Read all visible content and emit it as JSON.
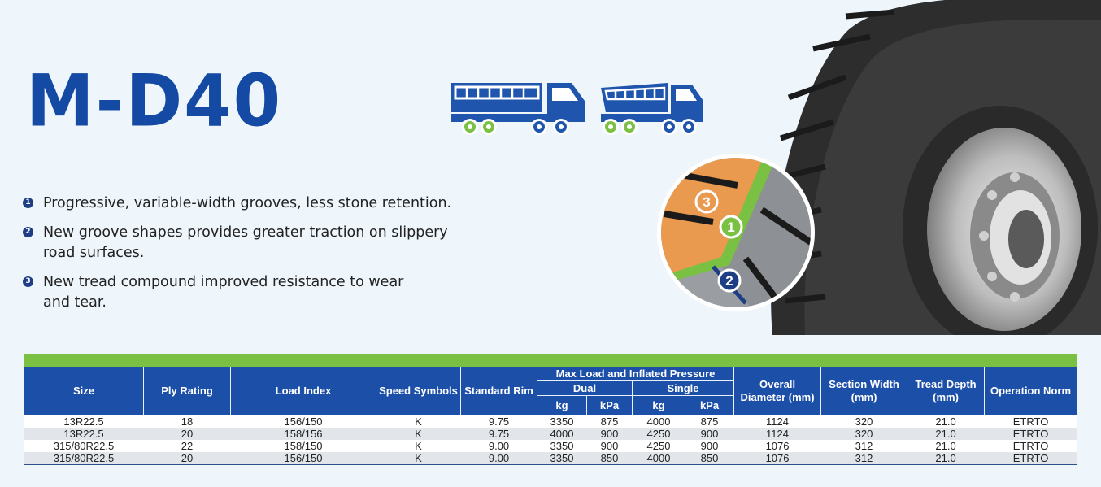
{
  "product": {
    "title": "M-D40"
  },
  "features": [
    {
      "num": "1",
      "text": "Progressive, variable-width grooves, less stone retention."
    },
    {
      "num": "2",
      "text": "New groove shapes provides greater traction on slippery road surfaces."
    },
    {
      "num": "3",
      "text": "New tread compound improved resistance to wear and tear."
    }
  ],
  "callouts": {
    "c1": "1",
    "c2": "2",
    "c3": "3"
  },
  "colors": {
    "brand_blue": "#1449a4",
    "header_blue": "#1c4fa8",
    "accent_green": "#7ac143",
    "bullet_navy": "#1d3d84"
  },
  "icons": [
    "dump-truck-icon",
    "tipper-truck-icon"
  ],
  "table": {
    "headers": {
      "size": "Size",
      "ply_rating": "Ply Rating",
      "load_index": "Load Index",
      "speed_symbols": "Speed Symbols",
      "standard_rim": "Standard Rim",
      "max_load": "Max Load and Inflated Pressure",
      "dual": "Dual",
      "single": "Single",
      "kg": "kg",
      "kpa": "kPa",
      "overall_diameter": "Overall Diameter (mm)",
      "section_width": "Section Width (mm)",
      "tread_depth": "Tread Depth (mm)",
      "operation_norm": "Operation Norm"
    },
    "rows": [
      [
        "13R22.5",
        "18",
        "156/150",
        "K",
        "9.75",
        "3350",
        "875",
        "4000",
        "875",
        "1124",
        "320",
        "21.0",
        "ETRTO"
      ],
      [
        "13R22.5",
        "20",
        "158/156",
        "K",
        "9.75",
        "4000",
        "900",
        "4250",
        "900",
        "1124",
        "320",
        "21.0",
        "ETRTO"
      ],
      [
        "315/80R22.5",
        "22",
        "158/150",
        "K",
        "9.00",
        "3350",
        "900",
        "4250",
        "900",
        "1076",
        "312",
        "21.0",
        "ETRTO"
      ],
      [
        "315/80R22.5",
        "20",
        "156/150",
        "K",
        "9.00",
        "3350",
        "850",
        "4000",
        "850",
        "1076",
        "312",
        "21.0",
        "ETRTO"
      ]
    ]
  }
}
